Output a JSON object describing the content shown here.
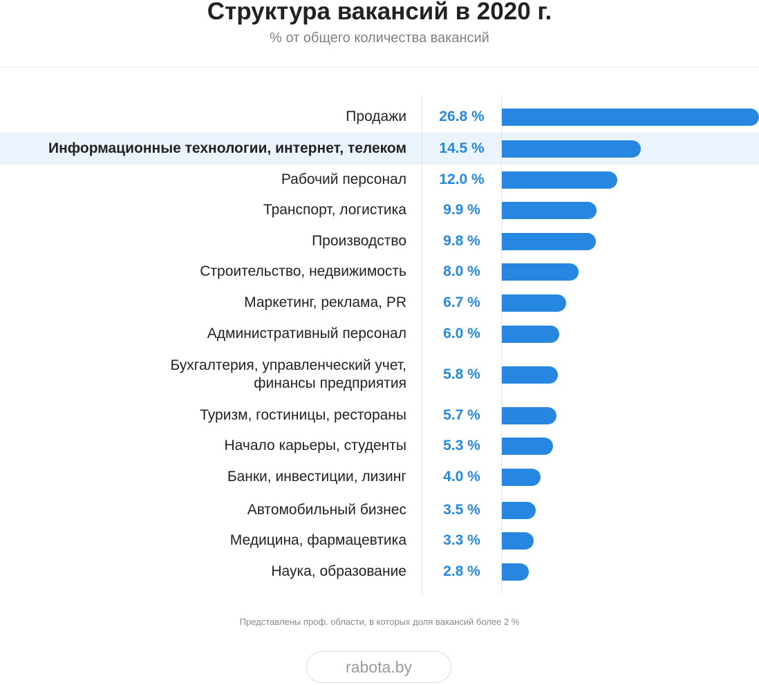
{
  "title": "Структура вакансий в 2020 г.",
  "subtitle": "% от общего количества вакансий",
  "note": "Представлены проф. области, в которых доля вакансий более 2 %",
  "source": "rabota.by",
  "colors": {
    "bar": "#2787e0",
    "value_text": "#2787e0",
    "highlight_row": "#ebf4fd",
    "title": "#222222",
    "subtitle": "#808080"
  },
  "chart_data": {
    "type": "bar",
    "orientation": "horizontal",
    "unit": "%",
    "xlim": [
      0,
      26.8
    ],
    "grid": false,
    "highlighted_category": "Информационные технологии, интернет, телеком",
    "categories": [
      "Продажи",
      "Информационные технологии, интернет, телеком",
      "Рабочий персонал",
      "Транспорт, логистика",
      "Производство",
      "Строительство, недвижимость",
      "Маркетинг, реклама, PR",
      "Административный персонал",
      "Бухгалтерия, управленческий учет,\nфинансы предприятия",
      "Туризм, гостиницы, рестораны",
      "Начало карьеры, студенты",
      "Банки, инвестиции, лизинг",
      "Автомобильный бизнес",
      "Медицина, фармацевтика",
      "Наука, образование"
    ],
    "values": [
      26.8,
      14.5,
      12.0,
      9.9,
      9.8,
      8.0,
      6.7,
      6.0,
      5.8,
      5.7,
      5.3,
      4.0,
      3.5,
      3.3,
      2.8
    ],
    "value_labels": [
      "26.8 %",
      "14.5 %",
      "12.0 %",
      "9.9 %",
      "9.8 %",
      "8.0 %",
      "6.7 %",
      "6.0 %",
      "5.8 %",
      "5.7 %",
      "5.3 %",
      "4.0 %",
      "3.5 %",
      "3.3 %",
      "2.8 %"
    ]
  }
}
